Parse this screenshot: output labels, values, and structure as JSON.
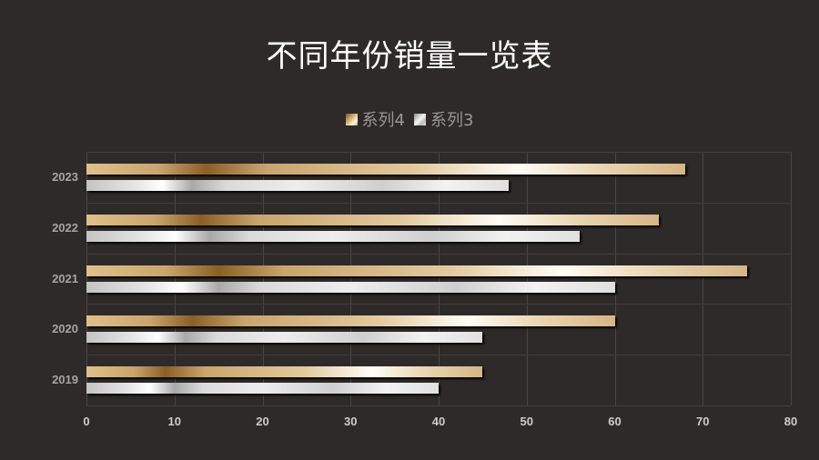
{
  "chart_data": {
    "type": "bar",
    "orientation": "horizontal",
    "title": "不同年份销量一览表",
    "categories": [
      "2023",
      "2022",
      "2021",
      "2020",
      "2019"
    ],
    "series": [
      {
        "name": "系列4",
        "values": [
          68,
          65,
          75,
          60,
          45
        ],
        "style": "gold-gradient"
      },
      {
        "name": "系列3",
        "values": [
          48,
          56,
          60,
          45,
          40
        ],
        "style": "silver-gradient"
      }
    ],
    "xlabel": "",
    "ylabel": "",
    "xlim": [
      0,
      80
    ],
    "x_ticks": [
      "0",
      "10",
      "20",
      "30",
      "40",
      "50",
      "60",
      "70",
      "80"
    ],
    "grid": true,
    "legend_position": "top"
  },
  "legend": [
    {
      "label": "系列4"
    },
    {
      "label": "系列3"
    }
  ],
  "colors": {
    "background": "#2e2a2a",
    "title": "#ffffff",
    "gold": "#c9a56d",
    "silver": "#d9d9d9"
  }
}
